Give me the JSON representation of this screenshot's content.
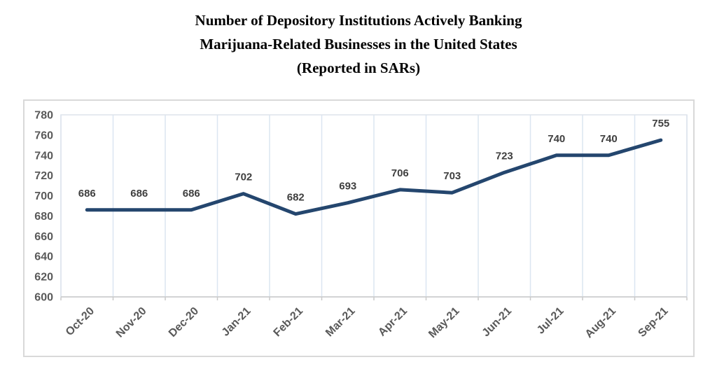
{
  "chart_data": {
    "type": "line",
    "title": [
      "Number of Depository Institutions Actively Banking",
      "Marijuana-Related Businesses in the United States",
      "(Reported in SARs)"
    ],
    "categories": [
      "Oct-20",
      "Nov-20",
      "Dec-20",
      "Jan-21",
      "Feb-21",
      "Mar-21",
      "Apr-21",
      "May-21",
      "Jun-21",
      "Jul-21",
      "Aug-21",
      "Sep-21"
    ],
    "values": [
      686,
      686,
      686,
      702,
      682,
      693,
      706,
      703,
      723,
      740,
      740,
      755
    ],
    "yticks": [
      600,
      620,
      640,
      660,
      680,
      700,
      720,
      740,
      760,
      780
    ],
    "ylim": [
      600,
      780
    ],
    "xlabel": "",
    "ylabel": "",
    "grid": "vertical",
    "legend": "none",
    "data_labels": true,
    "colors": {
      "line": "#24466E",
      "gridline": "#dbe6f1",
      "plot_border": "#dde3ec",
      "axis_line": "#c9c9c9",
      "axis_label": "#595959",
      "data_label": "#3f3f3f",
      "chart_border": "#d9d9d9",
      "title": "#000000",
      "background": "#ffffff"
    }
  }
}
